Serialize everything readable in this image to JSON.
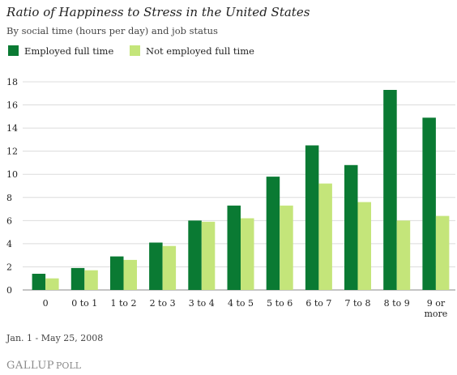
{
  "chart_data": {
    "type": "bar",
    "title": "Ratio of Happiness to Stress in the United States",
    "subtitle": "By social time (hours per day) and job status",
    "categories": [
      [
        "0"
      ],
      [
        "0 to 1"
      ],
      [
        "1 to 2"
      ],
      [
        "2 to 3"
      ],
      [
        "3 to 4"
      ],
      [
        "4 to 5"
      ],
      [
        "5 to 6"
      ],
      [
        "6 to 7"
      ],
      [
        "7 to 8"
      ],
      [
        "8 to 9"
      ],
      [
        "9 or",
        "more"
      ]
    ],
    "series": [
      {
        "name": "Employed full time",
        "color": "#0a7a33",
        "values": [
          1.4,
          1.9,
          2.9,
          4.1,
          6.0,
          7.3,
          9.8,
          12.5,
          10.8,
          17.3,
          14.9
        ]
      },
      {
        "name": "Not employed full time",
        "color": "#c4e57a",
        "values": [
          1.0,
          1.7,
          2.6,
          3.8,
          5.9,
          6.2,
          7.3,
          9.2,
          7.6,
          6.0,
          6.4
        ]
      }
    ],
    "ylim": [
      0,
      18
    ],
    "yticks": [
      0,
      2,
      4,
      6,
      8,
      10,
      12,
      14,
      16,
      18
    ],
    "grid": true,
    "legend": "top-left"
  },
  "footer": {
    "date_range": "Jan. 1 - May 25, 2008",
    "logo_main": "GALLUP",
    "logo_sub": "POLL"
  }
}
